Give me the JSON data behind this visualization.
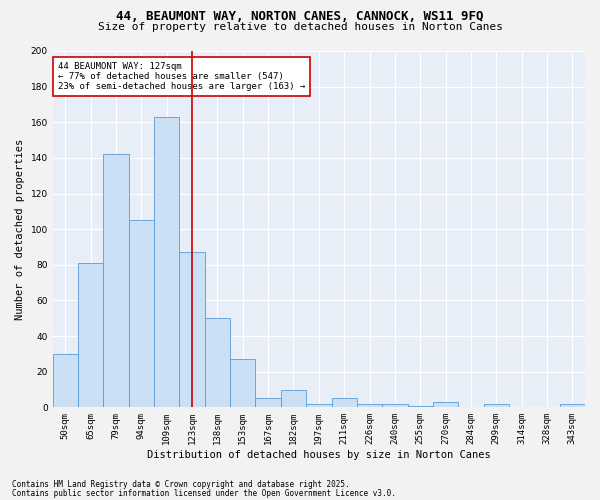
{
  "title_line1": "44, BEAUMONT WAY, NORTON CANES, CANNOCK, WS11 9FQ",
  "title_line2": "Size of property relative to detached houses in Norton Canes",
  "xlabel": "Distribution of detached houses by size in Norton Canes",
  "ylabel": "Number of detached properties",
  "categories": [
    "50sqm",
    "65sqm",
    "79sqm",
    "94sqm",
    "109sqm",
    "123sqm",
    "138sqm",
    "153sqm",
    "167sqm",
    "182sqm",
    "197sqm",
    "211sqm",
    "226sqm",
    "240sqm",
    "255sqm",
    "270sqm",
    "284sqm",
    "299sqm",
    "314sqm",
    "328sqm",
    "343sqm"
  ],
  "values": [
    30,
    81,
    142,
    105,
    163,
    87,
    50,
    27,
    5,
    10,
    2,
    5,
    2,
    2,
    1,
    3,
    0,
    2,
    0,
    0,
    2
  ],
  "bar_color": "#cce0f5",
  "bar_edge_color": "#5b9bd5",
  "vline_x_idx": 5,
  "vline_color": "#cc0000",
  "annotation_line1": "44 BEAUMONT WAY: 127sqm",
  "annotation_line2": "← 77% of detached houses are smaller (547)",
  "annotation_line3": "23% of semi-detached houses are larger (163) →",
  "annotation_box_color": "#ffffff",
  "annotation_box_edge": "#cc0000",
  "ylim": [
    0,
    200
  ],
  "yticks": [
    0,
    20,
    40,
    60,
    80,
    100,
    120,
    140,
    160,
    180,
    200
  ],
  "bg_color": "#e8eef8",
  "grid_color": "#ffffff",
  "fig_bg_color": "#f2f2f2",
  "footer_line1": "Contains HM Land Registry data © Crown copyright and database right 2025.",
  "footer_line2": "Contains public sector information licensed under the Open Government Licence v3.0.",
  "title_fontsize": 9,
  "subtitle_fontsize": 8,
  "axis_label_fontsize": 7.5,
  "tick_fontsize": 6.5,
  "annotation_fontsize": 6.5,
  "footer_fontsize": 5.5
}
